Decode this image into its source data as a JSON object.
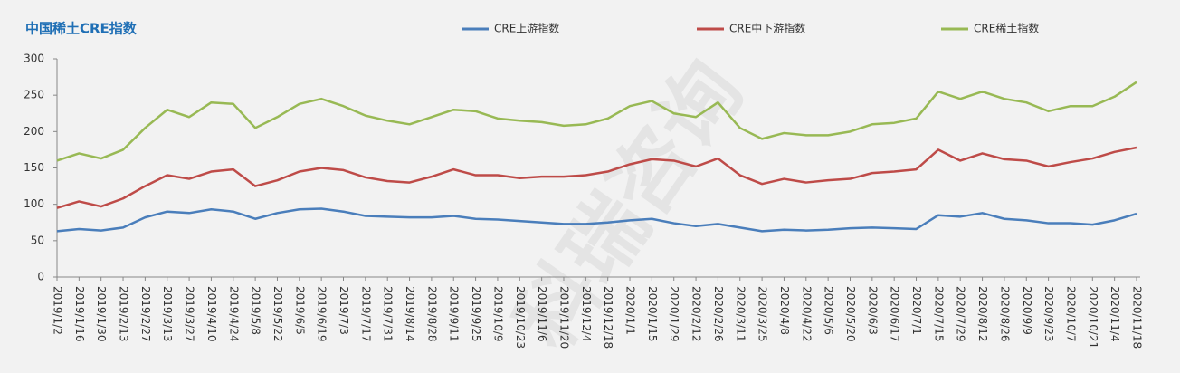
{
  "chart_data": {
    "type": "line",
    "title": "中国稀土CRE指数",
    "watermark": "科瑞咨询",
    "categories": [
      "2019/1/2",
      "2019/1/16",
      "2019/1/30",
      "2019/2/13",
      "2019/2/27",
      "2019/3/13",
      "2019/3/27",
      "2019/4/10",
      "2019/4/24",
      "2019/5/8",
      "2019/5/22",
      "2019/6/5",
      "2019/6/19",
      "2019/7/3",
      "2019/7/17",
      "2019/7/31",
      "2019/8/14",
      "2019/8/28",
      "2019/9/11",
      "2019/9/25",
      "2019/10/9",
      "2019/10/23",
      "2019/11/6",
      "2019/11/20",
      "2019/12/4",
      "2019/12/18",
      "2020/1/1",
      "2020/1/15",
      "2020/1/29",
      "2020/2/12",
      "2020/2/26",
      "2020/3/11",
      "2020/3/25",
      "2020/4/8",
      "2020/4/22",
      "2020/5/6",
      "2020/5/20",
      "2020/6/3",
      "2020/6/17",
      "2020/7/1",
      "2020/7/15",
      "2020/7/29",
      "2020/8/12",
      "2020/8/26",
      "2020/9/9",
      "2020/9/23",
      "2020/10/7",
      "2020/10/21",
      "2020/11/4",
      "2020/11/18"
    ],
    "series": [
      {
        "name": "CRE上游指数",
        "color": "#4a7ebb",
        "values": [
          63,
          66,
          64,
          68,
          82,
          90,
          88,
          93,
          90,
          80,
          88,
          93,
          94,
          90,
          84,
          83,
          82,
          82,
          84,
          80,
          79,
          77,
          75,
          73,
          73,
          75,
          78,
          80,
          74,
          70,
          73,
          68,
          63,
          65,
          64,
          65,
          67,
          68,
          67,
          66,
          85,
          83,
          88,
          80,
          78,
          74,
          74,
          72,
          78,
          87
        ]
      },
      {
        "name": "CRE中下游指数",
        "color": "#be4b48",
        "values": [
          95,
          104,
          97,
          108,
          125,
          140,
          135,
          145,
          148,
          125,
          133,
          145,
          150,
          147,
          137,
          132,
          130,
          138,
          148,
          140,
          140,
          136,
          138,
          138,
          140,
          145,
          155,
          162,
          160,
          152,
          163,
          140,
          128,
          135,
          130,
          133,
          135,
          143,
          145,
          148,
          175,
          160,
          170,
          162,
          160,
          152,
          158,
          163,
          172,
          178
        ]
      },
      {
        "name": "CRE稀土指数",
        "color": "#98b954",
        "values": [
          160,
          170,
          163,
          175,
          205,
          230,
          220,
          240,
          238,
          205,
          220,
          238,
          245,
          235,
          222,
          215,
          210,
          220,
          230,
          228,
          218,
          215,
          213,
          208,
          210,
          218,
          235,
          242,
          225,
          220,
          240,
          205,
          190,
          198,
          195,
          195,
          200,
          210,
          212,
          218,
          255,
          245,
          255,
          245,
          240,
          228,
          235,
          235,
          248,
          268
        ]
      }
    ],
    "ylim": [
      0,
      300
    ],
    "yticks": [
      0,
      50,
      100,
      150,
      200,
      250,
      300
    ],
    "grid": false
  }
}
